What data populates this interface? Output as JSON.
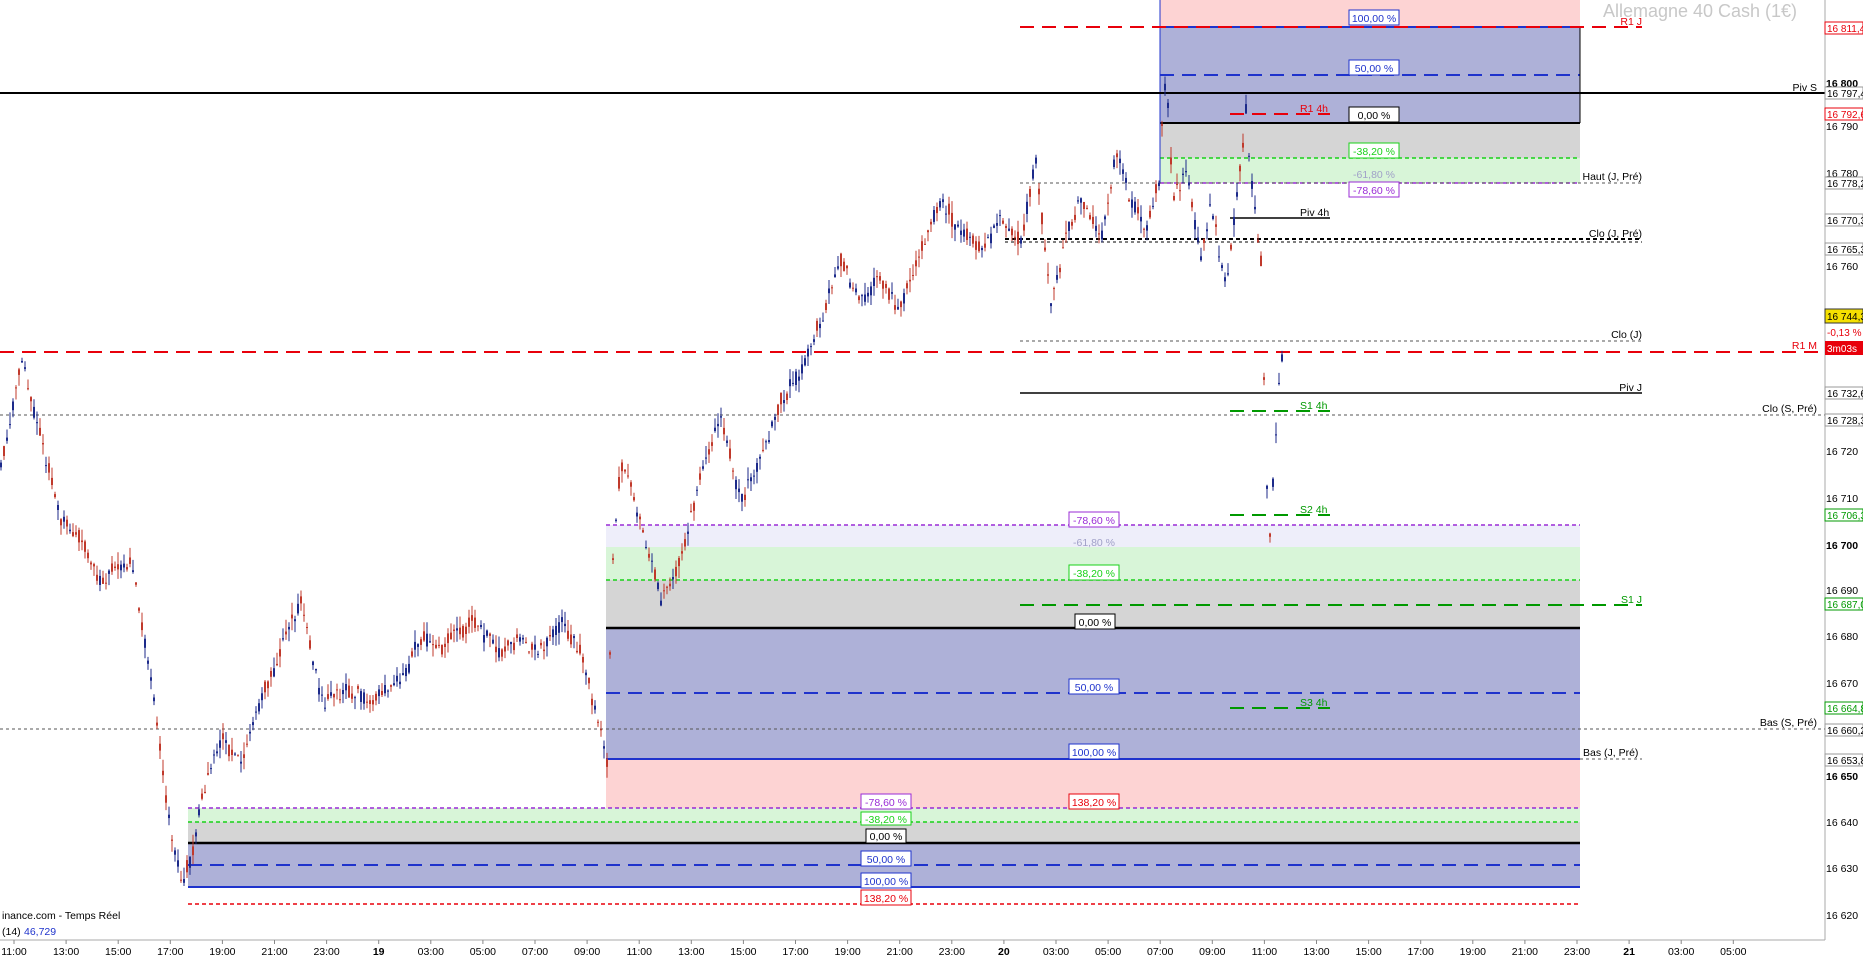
{
  "watermark": "Allemagne 40 Cash (1€)",
  "footer_credit": "inance.com - Temps Réel",
  "indicator_label": "(14)",
  "indicator_value": "46,729",
  "current_price": "16 744,3",
  "price_change": "-0,13 %",
  "countdown": "3m03s",
  "colors": {
    "up": "#c0392b",
    "down": "#1c2a8a",
    "fib_blue_fill": "#aeb1d8",
    "fib_grey_fill": "#d5d5d5",
    "fib_green_fill": "#d8f5d8",
    "fib_red_fill": "#fdd3d3",
    "pivot_red": "#e8000b",
    "pivot_green": "#009900",
    "current_price_bg": "#f5e000"
  },
  "y_axis": {
    "labels": [
      "16 800",
      "16 790",
      "16 780",
      "16 760",
      "16 720",
      "16 710",
      "16 700",
      "16 690",
      "16 680",
      "16 670",
      "16 650",
      "16 640",
      "16 630",
      "16 620"
    ],
    "price_tags": [
      "16 811,4",
      "16 797,4",
      "16 792,6",
      "16 778,2",
      "16 770,3",
      "16 765,3",
      "16 732,6",
      "16 728,3",
      "16 706,3",
      "16 687,0",
      "16 664,8",
      "16 660,2",
      "16 653,8"
    ]
  },
  "x_axis": {
    "labels": [
      "11:00",
      "13:00",
      "15:00",
      "17:00",
      "19:00",
      "21:00",
      "23:00",
      "19",
      "03:00",
      "05:00",
      "07:00",
      "09:00",
      "11:00",
      "13:00",
      "15:00",
      "17:00",
      "19:00",
      "21:00",
      "23:00",
      "20",
      "03:00",
      "05:00",
      "07:00",
      "09:00",
      "11:00",
      "13:00",
      "15:00",
      "17:00",
      "19:00",
      "21:00",
      "23:00",
      "21",
      "03:00",
      "05:00"
    ]
  },
  "levels": {
    "right_labels": [
      "R1 J",
      "Piv S",
      "Haut (J, Pré)",
      "Clo (J, Pré)",
      "Clo (J)",
      "R1 M",
      "Piv J",
      "Clo (S, Pré)",
      "S1 J",
      "Bas (S, Pré)",
      "Bas (J, Pré)"
    ],
    "h4_labels": [
      "R1 4h",
      "Piv 4h",
      "S1 4h",
      "S2 4h",
      "S3 4h"
    ]
  },
  "fib_top": [
    "100,00 %",
    "50,00 %",
    "0,00 %",
    "-38,20 %",
    "-61,80 %",
    "-78,60 %"
  ],
  "fib_mid": [
    "-78,60 %",
    "-61,80 %",
    "-38,20 %",
    "0,00 %",
    "50,00 %",
    "100,00 %",
    "138,20 %"
  ],
  "fib_bottom": [
    "-78,60 %",
    "-38,20 %",
    "0,00 %",
    "50,00 %",
    "100,00 %",
    "138,20 %"
  ]
}
